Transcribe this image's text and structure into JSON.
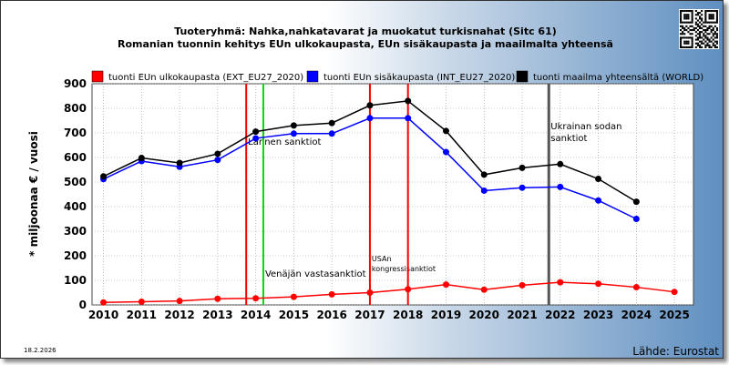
{
  "chart_data": {
    "type": "line",
    "title": "Tuoteryhmä: Nahka,nahkatavarat ja muokatut turkisnahat (Sitc 61)",
    "subtitle": "Romanian tuonnin kehitys EUn ulkokaupasta, EUn sisäkaupasta ja maailmalta yhteensä",
    "ylabel": "* miljoonaa € / vuosi",
    "xlabel": "",
    "ylim": [
      0,
      900
    ],
    "yticks": [
      0,
      100,
      200,
      300,
      400,
      500,
      600,
      700,
      800,
      900
    ],
    "x": [
      "2010",
      "2011",
      "2012",
      "2013",
      "2014",
      "2015",
      "2016",
      "2017",
      "2018",
      "2019",
      "2020",
      "2021",
      "2022",
      "2023",
      "2024",
      "2025"
    ],
    "grid": true,
    "legend_position": "top",
    "series": [
      {
        "name": "tuonti EUn ulkokaupasta (EXT_EU27_2020)",
        "color": "#ff0000",
        "values": [
          10,
          13,
          16,
          25,
          27,
          33,
          43,
          50,
          64,
          83,
          62,
          80,
          92,
          86,
          72,
          53
        ]
      },
      {
        "name": "tuonti EUn sisäkaupasta (INT_EU27_2020)",
        "color": "#0000ff",
        "values": [
          512,
          585,
          562,
          590,
          678,
          697,
          697,
          760,
          760,
          622,
          465,
          477,
          480,
          425,
          350,
          null
        ]
      },
      {
        "name": "tuonti maailma yhteensältä (WORLD)",
        "color": "#000000",
        "values": [
          523,
          598,
          578,
          615,
          705,
          730,
          740,
          812,
          830,
          708,
          530,
          558,
          573,
          513,
          420,
          null
        ]
      }
    ],
    "vlines": [
      {
        "x": 2013.75,
        "color": "#ff0000",
        "label": "Lännen sanktiot"
      },
      {
        "x": 2014.2,
        "color": "#00dd00",
        "label": "Venäjän vastasanktiot"
      },
      {
        "x": 2017.0,
        "color": "#ff0000",
        "label": "USAn kongressisanktiot"
      },
      {
        "x": 2018.0,
        "color": "#ff0000",
        "label": ""
      },
      {
        "x": 2021.7,
        "color": "#555555",
        "label": "Ukrainan sodan sanktiot"
      }
    ]
  },
  "footer": {
    "date": "18.2.2026",
    "source": "Lähde: Eurostat"
  },
  "colors": {
    "ext": "#ff0000",
    "int": "#0000ff",
    "world": "#000000"
  },
  "icons": {
    "qr": "qr-code-icon"
  }
}
